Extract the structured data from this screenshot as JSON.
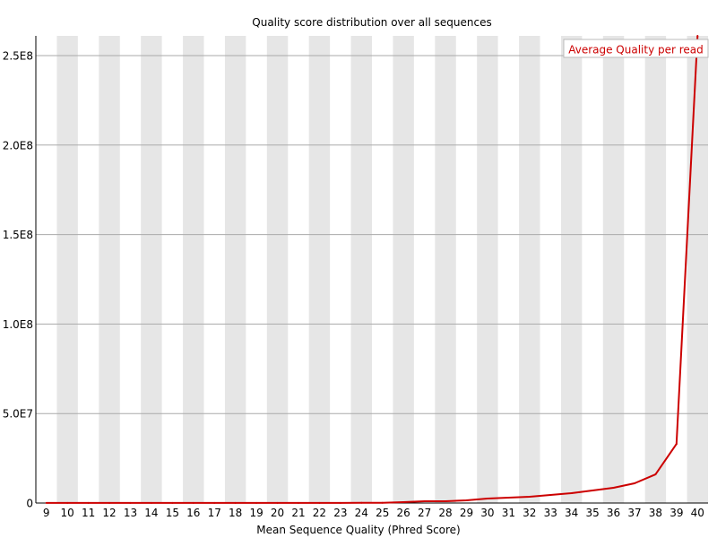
{
  "chart_data": {
    "type": "line",
    "title": "Quality score distribution over all sequences",
    "xlabel": "Mean Sequence Quality (Phred Score)",
    "ylabel": "",
    "categories": [
      "9",
      "10",
      "11",
      "12",
      "13",
      "14",
      "15",
      "16",
      "17",
      "18",
      "19",
      "20",
      "21",
      "22",
      "23",
      "24",
      "25",
      "26",
      "27",
      "28",
      "29",
      "30",
      "31",
      "32",
      "33",
      "34",
      "35",
      "36",
      "37",
      "38",
      "39",
      "40"
    ],
    "y_ticks": [
      {
        "value": 0,
        "label": "0"
      },
      {
        "value": 50000000,
        "label": "5.0E7"
      },
      {
        "value": 100000000,
        "label": "1.0E8"
      },
      {
        "value": 150000000,
        "label": "1.5E8"
      },
      {
        "value": 200000000,
        "label": "2.0E8"
      },
      {
        "value": 250000000,
        "label": "2.5E8"
      }
    ],
    "ylim": [
      0,
      261000000
    ],
    "grid": true,
    "legend_position": "top-right",
    "series": [
      {
        "name": "Average Quality per read",
        "color": "#cc0000",
        "values": [
          50000,
          50000,
          50000,
          50000,
          50000,
          50000,
          50000,
          50000,
          50000,
          50000,
          50000,
          50000,
          50000,
          50000,
          50000,
          100000,
          100000,
          500000,
          1000000,
          1000000,
          1500000,
          2500000,
          3000000,
          3500000,
          4500000,
          5500000,
          7000000,
          8500000,
          11000000,
          16000000,
          33000000,
          261000000
        ]
      }
    ]
  }
}
